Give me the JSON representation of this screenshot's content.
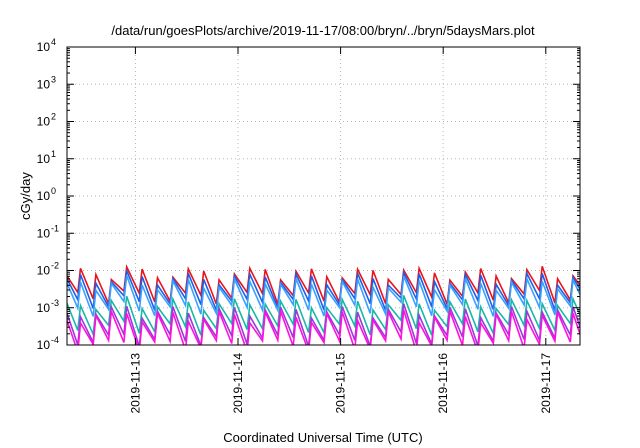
{
  "chart_data": {
    "type": "line",
    "title": "/data/run/goesPlots/archive/2019-11-17/08:00/bryn/../bryn/5daysMars.plot",
    "xlabel": "Coordinated Universal Time (UTC)",
    "ylabel": "cGy/day",
    "yscale": "log",
    "ylim": [
      0.0001,
      10000
    ],
    "xlim": [
      "2019-11-12T08:00",
      "2019-11-17T08:00"
    ],
    "y_ticks": [
      {
        "base": "10",
        "exp": "4",
        "value": 10000
      },
      {
        "base": "10",
        "exp": "3",
        "value": 1000
      },
      {
        "base": "10",
        "exp": "2",
        "value": 100
      },
      {
        "base": "10",
        "exp": "1",
        "value": 10
      },
      {
        "base": "10",
        "exp": "0",
        "value": 1
      },
      {
        "base": "10",
        "exp": "-1",
        "value": 0.1
      },
      {
        "base": "10",
        "exp": "-2",
        "value": 0.01
      },
      {
        "base": "10",
        "exp": "-3",
        "value": 0.001
      },
      {
        "base": "10",
        "exp": "-4",
        "value": 0.0001
      }
    ],
    "x_ticks": [
      {
        "label": "2019-11-13",
        "value": "2019-11-13T00:00"
      },
      {
        "label": "2019-11-14",
        "value": "2019-11-14T00:00"
      },
      {
        "label": "2019-11-15",
        "value": "2019-11-15T00:00"
      },
      {
        "label": "2019-11-16",
        "value": "2019-11-16T00:00"
      },
      {
        "label": "2019-11-17",
        "value": "2019-11-17T00:00"
      }
    ],
    "grid": true,
    "legend": "none",
    "series": [
      {
        "color": "#e8141e",
        "peak": 0.0085,
        "trough": 0.0019
      },
      {
        "color": "#1f5fe6",
        "peak": 0.0062,
        "trough": 0.0013
      },
      {
        "color": "#3aa0ff",
        "peak": 0.0045,
        "trough": 0.0009
      },
      {
        "color": "#18b8a8",
        "peak": 0.0013,
        "trough": 0.00028
      },
      {
        "color": "#9a3ad8",
        "peak": 0.0008,
        "trough": 0.00014
      },
      {
        "color": "#ff10e0",
        "peak": 0.0006,
        "trough": 0.0001
      }
    ],
    "cycle_hours": 3.6
  }
}
